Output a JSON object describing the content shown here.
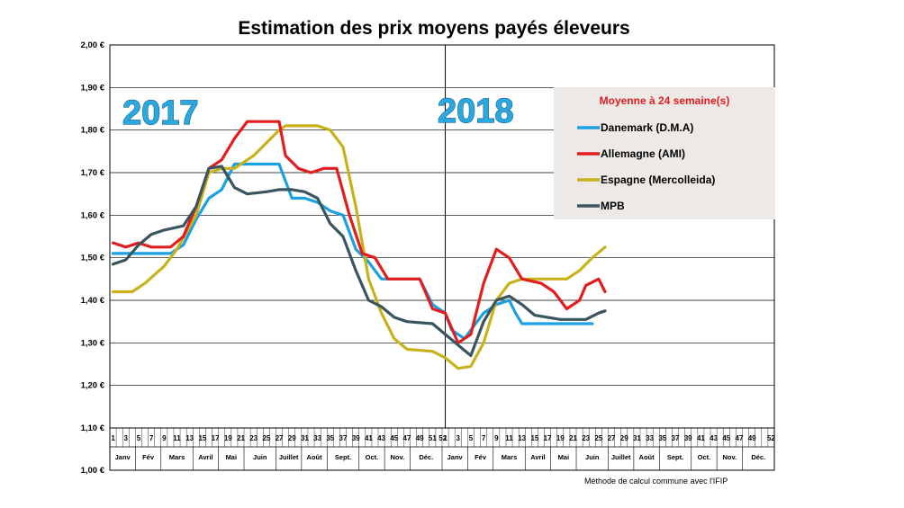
{
  "chart_data": {
    "type": "line",
    "title": "Estimation des prix moyens payés éleveurs",
    "ylim": [
      1.0,
      2.0
    ],
    "y_ticks": [
      "1,00 €",
      "1,10 €",
      "1,20 €",
      "1,30 €",
      "1,40 €",
      "1,50 €",
      "1,60 €",
      "1,70 €",
      "1,80 €",
      "1,90 €",
      "2,00 €"
    ],
    "x_tick_labels_2017": [
      "1",
      "3",
      "5",
      "7",
      "9",
      "11",
      "13",
      "15",
      "17",
      "19",
      "21",
      "23",
      "25",
      "27",
      "29",
      "31",
      "33",
      "35",
      "37",
      "39",
      "41",
      "43",
      "45",
      "47",
      "49",
      "51"
    ],
    "x_tick_labels_2018": [
      "52",
      "1",
      "3",
      "5",
      "7",
      "9",
      "11",
      "13",
      "15",
      "17",
      "19",
      "21",
      "23",
      "25",
      "27",
      "29",
      "31",
      "33",
      "35",
      "37",
      "39",
      "41",
      "43",
      "45",
      "47",
      "49",
      "52"
    ],
    "months": [
      "Janv",
      "Fév",
      "Mars",
      "Avril",
      "Mai",
      "Juin",
      "Juillet",
      "Août",
      "Sept.",
      "Oct.",
      "Nov.",
      "Déc.",
      "Janv",
      "Fév",
      "Mars",
      "Avril",
      "Mai",
      "Juin",
      "Juillet",
      "Août",
      "Sept.",
      "Oct.",
      "Nov.",
      "Déc."
    ],
    "year_labels": [
      "2017",
      "2018"
    ],
    "legend_title": "Moyenne à  24 semaine(s)",
    "legend_position": "top-right",
    "grid": true,
    "series": [
      {
        "name": "Danemark (D.M.A)",
        "color": "#1ba1e2",
        "points": [
          [
            1,
            1.51
          ],
          [
            4,
            1.51
          ],
          [
            6,
            1.51
          ],
          [
            10,
            1.51
          ],
          [
            12,
            1.53
          ],
          [
            14,
            1.59
          ],
          [
            16,
            1.64
          ],
          [
            18,
            1.66
          ],
          [
            20,
            1.72
          ],
          [
            22,
            1.72
          ],
          [
            27,
            1.72
          ],
          [
            29,
            1.64
          ],
          [
            31,
            1.64
          ],
          [
            33,
            1.63
          ],
          [
            35,
            1.61
          ],
          [
            37,
            1.6
          ],
          [
            39,
            1.52
          ],
          [
            41,
            1.49
          ],
          [
            43,
            1.45
          ],
          [
            45,
            1.45
          ],
          [
            47,
            1.45
          ],
          [
            49,
            1.45
          ],
          [
            51,
            1.39
          ],
          [
            53,
            1.37
          ],
          [
            54,
            1.33
          ],
          [
            56,
            1.31
          ],
          [
            57,
            1.33
          ],
          [
            59,
            1.37
          ],
          [
            61,
            1.39
          ],
          [
            63,
            1.4
          ],
          [
            64,
            1.37
          ],
          [
            65,
            1.345
          ],
          [
            70,
            1.345
          ],
          [
            76,
            1.345
          ]
        ]
      },
      {
        "name": "Allemagne (AMI)",
        "color": "#e31d1d",
        "points": [
          [
            1,
            1.535
          ],
          [
            3,
            1.525
          ],
          [
            5,
            1.535
          ],
          [
            7,
            1.525
          ],
          [
            10,
            1.525
          ],
          [
            12,
            1.55
          ],
          [
            14,
            1.62
          ],
          [
            16,
            1.71
          ],
          [
            18,
            1.73
          ],
          [
            20,
            1.78
          ],
          [
            22,
            1.82
          ],
          [
            27,
            1.82
          ],
          [
            28,
            1.74
          ],
          [
            30,
            1.71
          ],
          [
            32,
            1.7
          ],
          [
            34,
            1.71
          ],
          [
            36,
            1.71
          ],
          [
            38,
            1.6
          ],
          [
            40,
            1.51
          ],
          [
            42,
            1.5
          ],
          [
            44,
            1.45
          ],
          [
            49,
            1.45
          ],
          [
            51,
            1.38
          ],
          [
            53,
            1.37
          ],
          [
            55,
            1.3
          ],
          [
            57,
            1.32
          ],
          [
            59,
            1.44
          ],
          [
            61,
            1.52
          ],
          [
            63,
            1.5
          ],
          [
            65,
            1.45
          ],
          [
            68,
            1.44
          ],
          [
            70,
            1.42
          ],
          [
            72,
            1.38
          ],
          [
            74,
            1.4
          ],
          [
            75,
            1.435
          ],
          [
            77,
            1.45
          ],
          [
            78,
            1.42
          ]
        ]
      },
      {
        "name": "Espagne (Mercolleida)",
        "color": "#c8b21c",
        "points": [
          [
            1,
            1.42
          ],
          [
            4,
            1.42
          ],
          [
            6,
            1.44
          ],
          [
            9,
            1.48
          ],
          [
            11,
            1.52
          ],
          [
            14,
            1.6
          ],
          [
            16,
            1.7
          ],
          [
            18,
            1.71
          ],
          [
            20,
            1.71
          ],
          [
            23,
            1.74
          ],
          [
            25,
            1.77
          ],
          [
            27,
            1.8
          ],
          [
            28,
            1.81
          ],
          [
            33,
            1.81
          ],
          [
            35,
            1.8
          ],
          [
            37,
            1.76
          ],
          [
            39,
            1.62
          ],
          [
            41,
            1.45
          ],
          [
            43,
            1.37
          ],
          [
            45,
            1.31
          ],
          [
            47,
            1.285
          ],
          [
            51,
            1.28
          ],
          [
            53,
            1.265
          ],
          [
            55,
            1.24
          ],
          [
            57,
            1.245
          ],
          [
            59,
            1.3
          ],
          [
            61,
            1.4
          ],
          [
            63,
            1.44
          ],
          [
            65,
            1.45
          ],
          [
            72,
            1.45
          ],
          [
            74,
            1.47
          ],
          [
            76,
            1.5
          ],
          [
            78,
            1.525
          ]
        ]
      },
      {
        "name": "MPB",
        "color": "#3a5560",
        "points": [
          [
            1,
            1.485
          ],
          [
            3,
            1.495
          ],
          [
            5,
            1.53
          ],
          [
            7,
            1.555
          ],
          [
            9,
            1.565
          ],
          [
            12,
            1.575
          ],
          [
            14,
            1.62
          ],
          [
            16,
            1.71
          ],
          [
            18,
            1.715
          ],
          [
            20,
            1.665
          ],
          [
            22,
            1.65
          ],
          [
            25,
            1.655
          ],
          [
            27,
            1.66
          ],
          [
            29,
            1.66
          ],
          [
            31,
            1.655
          ],
          [
            33,
            1.64
          ],
          [
            35,
            1.58
          ],
          [
            37,
            1.55
          ],
          [
            39,
            1.47
          ],
          [
            41,
            1.4
          ],
          [
            43,
            1.385
          ],
          [
            45,
            1.36
          ],
          [
            47,
            1.35
          ],
          [
            51,
            1.345
          ],
          [
            53,
            1.32
          ],
          [
            55,
            1.295
          ],
          [
            57,
            1.27
          ],
          [
            59,
            1.35
          ],
          [
            61,
            1.4
          ],
          [
            63,
            1.41
          ],
          [
            65,
            1.39
          ],
          [
            67,
            1.365
          ],
          [
            69,
            1.36
          ],
          [
            71,
            1.355
          ],
          [
            75,
            1.355
          ],
          [
            77,
            1.37
          ],
          [
            78,
            1.375
          ]
        ]
      }
    ]
  },
  "footnote": "Méthode de calcul commune avec l'IFIP"
}
